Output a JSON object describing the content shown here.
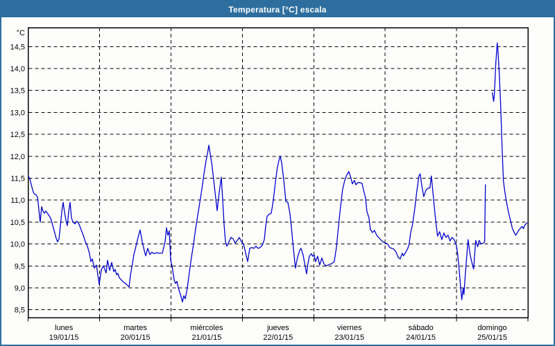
{
  "window": {
    "title": "Temperatura [°C] escala"
  },
  "colors": {
    "frame": "#2d6e9e",
    "titlebar": "#2d6e9e",
    "title_text": "#ffffff",
    "plot_background": "#fdfefc",
    "grid": "#000000",
    "series": "#0000cd"
  },
  "chart_data": {
    "type": "line",
    "title": "Temperatura [°C] escala",
    "unit_label": "°C",
    "legend": "none",
    "grid": "dashed",
    "ylim_display": [
      8.32,
      14.93
    ],
    "yticks": [
      [
        14.5,
        "14,5"
      ],
      [
        14.0,
        "14,0"
      ],
      [
        13.5,
        "13,5"
      ],
      [
        13.0,
        "13,0"
      ],
      [
        12.5,
        "12,5"
      ],
      [
        12.0,
        "12,0"
      ],
      [
        11.5,
        "11,5"
      ],
      [
        11.0,
        "11,0"
      ],
      [
        10.5,
        "10,5"
      ],
      [
        10.0,
        "10,0"
      ],
      [
        9.5,
        "9,5"
      ],
      [
        9.0,
        "9,0"
      ],
      [
        8.5,
        "8,5"
      ]
    ],
    "x_days": [
      {
        "name": "lunes",
        "date": "19/01/15"
      },
      {
        "name": "martes",
        "date": "20/01/15"
      },
      {
        "name": "miércoles",
        "date": "21/01/15"
      },
      {
        "name": "jueves",
        "date": "22/01/15"
      },
      {
        "name": "viernes",
        "date": "23/01/15"
      },
      {
        "name": "sábado",
        "date": "24/01/15"
      },
      {
        "name": "domingo",
        "date": "25/01/15"
      }
    ],
    "x_unit": "days_since_start",
    "points": [
      [
        0.0,
        11.55
      ],
      [
        0.022,
        11.48
      ],
      [
        0.042,
        11.36
      ],
      [
        0.061,
        11.23
      ],
      [
        0.081,
        11.15
      ],
      [
        0.11,
        11.12
      ],
      [
        0.129,
        11.07
      ],
      [
        0.139,
        10.95
      ],
      [
        0.158,
        10.62
      ],
      [
        0.168,
        10.5
      ],
      [
        0.188,
        10.85
      ],
      [
        0.207,
        10.75
      ],
      [
        0.226,
        10.7
      ],
      [
        0.246,
        10.75
      ],
      [
        0.265,
        10.71
      ],
      [
        0.294,
        10.64
      ],
      [
        0.314,
        10.59
      ],
      [
        0.333,
        10.48
      ],
      [
        0.363,
        10.3
      ],
      [
        0.392,
        10.13
      ],
      [
        0.411,
        10.05
      ],
      [
        0.431,
        10.11
      ],
      [
        0.45,
        10.4
      ],
      [
        0.469,
        10.73
      ],
      [
        0.489,
        10.95
      ],
      [
        0.508,
        10.73
      ],
      [
        0.528,
        10.54
      ],
      [
        0.547,
        10.42
      ],
      [
        0.567,
        10.73
      ],
      [
        0.586,
        10.95
      ],
      [
        0.605,
        10.6
      ],
      [
        0.625,
        10.5
      ],
      [
        0.654,
        10.46
      ],
      [
        0.683,
        10.52
      ],
      [
        0.712,
        10.45
      ],
      [
        0.742,
        10.32
      ],
      [
        0.771,
        10.2
      ],
      [
        0.8,
        10.05
      ],
      [
        0.829,
        9.95
      ],
      [
        0.858,
        9.78
      ],
      [
        0.878,
        9.6
      ],
      [
        0.897,
        9.66
      ],
      [
        0.926,
        9.45
      ],
      [
        0.955,
        9.52
      ],
      [
        0.975,
        9.3
      ],
      [
        0.994,
        9.08
      ],
      [
        1.024,
        9.42
      ],
      [
        1.053,
        9.5
      ],
      [
        1.091,
        9.34
      ],
      [
        1.111,
        9.63
      ],
      [
        1.14,
        9.4
      ],
      [
        1.169,
        9.58
      ],
      [
        1.198,
        9.37
      ],
      [
        1.218,
        9.42
      ],
      [
        1.237,
        9.3
      ],
      [
        1.257,
        9.33
      ],
      [
        1.276,
        9.23
      ],
      [
        1.305,
        9.18
      ],
      [
        1.334,
        9.13
      ],
      [
        1.363,
        9.1
      ],
      [
        1.412,
        9.02
      ],
      [
        1.432,
        9.3
      ],
      [
        1.451,
        9.47
      ],
      [
        1.48,
        9.76
      ],
      [
        1.509,
        9.95
      ],
      [
        1.538,
        10.15
      ],
      [
        1.568,
        10.32
      ],
      [
        1.597,
        10.05
      ],
      [
        1.626,
        9.85
      ],
      [
        1.645,
        9.73
      ],
      [
        1.674,
        9.9
      ],
      [
        1.704,
        9.76
      ],
      [
        1.733,
        9.81
      ],
      [
        1.762,
        9.78
      ],
      [
        1.801,
        9.8
      ],
      [
        1.84,
        9.79
      ],
      [
        1.879,
        9.79
      ],
      [
        1.917,
        10.05
      ],
      [
        1.937,
        10.37
      ],
      [
        1.956,
        10.2
      ],
      [
        1.976,
        10.3
      ],
      [
        1.995,
        9.63
      ],
      [
        2.015,
        9.5
      ],
      [
        2.044,
        9.18
      ],
      [
        2.063,
        9.1
      ],
      [
        2.083,
        9.15
      ],
      [
        2.102,
        9.0
      ],
      [
        2.121,
        8.9
      ],
      [
        2.141,
        8.8
      ],
      [
        2.16,
        8.68
      ],
      [
        2.18,
        8.82
      ],
      [
        2.199,
        8.75
      ],
      [
        2.228,
        9.0
      ],
      [
        2.257,
        9.35
      ],
      [
        2.287,
        9.7
      ],
      [
        2.316,
        10.0
      ],
      [
        2.345,
        10.35
      ],
      [
        2.374,
        10.65
      ],
      [
        2.403,
        10.95
      ],
      [
        2.432,
        11.25
      ],
      [
        2.462,
        11.6
      ],
      [
        2.491,
        11.9
      ],
      [
        2.51,
        12.05
      ],
      [
        2.53,
        12.25
      ],
      [
        2.549,
        12.05
      ],
      [
        2.569,
        11.85
      ],
      [
        2.588,
        11.6
      ],
      [
        2.617,
        11.18
      ],
      [
        2.646,
        10.76
      ],
      [
        2.675,
        11.18
      ],
      [
        2.705,
        11.52
      ],
      [
        2.724,
        11.0
      ],
      [
        2.743,
        10.45
      ],
      [
        2.763,
        10.05
      ],
      [
        2.782,
        9.95
      ],
      [
        2.811,
        10.05
      ],
      [
        2.84,
        10.15
      ],
      [
        2.87,
        10.12
      ],
      [
        2.899,
        10.02
      ],
      [
        2.928,
        10.08
      ],
      [
        2.957,
        10.15
      ],
      [
        2.986,
        10.05
      ],
      [
        3.016,
        10.0
      ],
      [
        3.045,
        9.8
      ],
      [
        3.074,
        9.6
      ],
      [
        3.103,
        9.9
      ],
      [
        3.132,
        9.92
      ],
      [
        3.161,
        9.9
      ],
      [
        3.19,
        9.95
      ],
      [
        3.22,
        9.9
      ],
      [
        3.249,
        9.92
      ],
      [
        3.278,
        9.97
      ],
      [
        3.307,
        10.1
      ],
      [
        3.326,
        10.4
      ],
      [
        3.346,
        10.63
      ],
      [
        3.375,
        10.68
      ],
      [
        3.404,
        10.7
      ],
      [
        3.433,
        11.0
      ],
      [
        3.462,
        11.4
      ],
      [
        3.491,
        11.75
      ],
      [
        3.511,
        11.9
      ],
      [
        3.53,
        12.0
      ],
      [
        3.55,
        11.85
      ],
      [
        3.569,
        11.6
      ],
      [
        3.588,
        11.32
      ],
      [
        3.608,
        10.97
      ],
      [
        3.637,
        10.95
      ],
      [
        3.666,
        10.7
      ],
      [
        3.685,
        10.4
      ],
      [
        3.714,
        9.9
      ],
      [
        3.743,
        9.45
      ],
      [
        3.773,
        9.7
      ],
      [
        3.802,
        9.85
      ],
      [
        3.821,
        9.9
      ],
      [
        3.85,
        9.75
      ],
      [
        3.879,
        9.5
      ],
      [
        3.899,
        9.32
      ],
      [
        3.918,
        9.55
      ],
      [
        3.938,
        9.72
      ],
      [
        3.967,
        9.78
      ],
      [
        3.986,
        9.72
      ],
      [
        4.006,
        9.75
      ],
      [
        4.025,
        9.6
      ],
      [
        4.054,
        9.72
      ],
      [
        4.083,
        9.52
      ],
      [
        4.113,
        9.68
      ],
      [
        4.142,
        9.55
      ],
      [
        4.171,
        9.5
      ],
      [
        4.21,
        9.53
      ],
      [
        4.249,
        9.55
      ],
      [
        4.287,
        9.6
      ],
      [
        4.317,
        9.92
      ],
      [
        4.346,
        10.4
      ],
      [
        4.375,
        10.85
      ],
      [
        4.404,
        11.25
      ],
      [
        4.433,
        11.45
      ],
      [
        4.462,
        11.57
      ],
      [
        4.491,
        11.65
      ],
      [
        4.521,
        11.5
      ],
      [
        4.54,
        11.37
      ],
      [
        4.569,
        11.45
      ],
      [
        4.589,
        11.35
      ],
      [
        4.618,
        11.4
      ],
      [
        4.647,
        11.4
      ],
      [
        4.676,
        11.38
      ],
      [
        4.695,
        11.24
      ],
      [
        4.725,
        11.05
      ],
      [
        4.744,
        10.74
      ],
      [
        4.773,
        10.6
      ],
      [
        4.792,
        10.34
      ],
      [
        4.821,
        10.26
      ],
      [
        4.85,
        10.31
      ],
      [
        4.88,
        10.2
      ],
      [
        4.909,
        10.15
      ],
      [
        4.947,
        10.08
      ],
      [
        4.977,
        10.04
      ],
      [
        5.006,
        10.02
      ],
      [
        5.035,
        10.0
      ],
      [
        5.064,
        9.92
      ],
      [
        5.093,
        9.9
      ],
      [
        5.122,
        9.88
      ],
      [
        5.152,
        9.82
      ],
      [
        5.181,
        9.7
      ],
      [
        5.21,
        9.66
      ],
      [
        5.239,
        9.79
      ],
      [
        5.258,
        9.73
      ],
      [
        5.288,
        9.81
      ],
      [
        5.317,
        9.9
      ],
      [
        5.336,
        10.0
      ],
      [
        5.355,
        10.24
      ],
      [
        5.385,
        10.46
      ],
      [
        5.414,
        10.8
      ],
      [
        5.443,
        11.2
      ],
      [
        5.472,
        11.55
      ],
      [
        5.491,
        11.6
      ],
      [
        5.511,
        11.35
      ],
      [
        5.54,
        11.08
      ],
      [
        5.569,
        11.22
      ],
      [
        5.598,
        11.27
      ],
      [
        5.627,
        11.28
      ],
      [
        5.647,
        11.55
      ],
      [
        5.676,
        11.05
      ],
      [
        5.705,
        10.58
      ],
      [
        5.734,
        10.18
      ],
      [
        5.763,
        10.28
      ],
      [
        5.793,
        10.1
      ],
      [
        5.822,
        10.25
      ],
      [
        5.851,
        10.15
      ],
      [
        5.88,
        10.2
      ],
      [
        5.909,
        10.07
      ],
      [
        5.938,
        10.15
      ],
      [
        5.967,
        10.1
      ],
      [
        5.997,
        9.97
      ],
      [
        6.016,
        9.77
      ],
      [
        6.035,
        9.45
      ],
      [
        6.055,
        9.05
      ],
      [
        6.074,
        8.73
      ],
      [
        6.093,
        9.0
      ],
      [
        6.103,
        8.85
      ],
      [
        6.122,
        9.3
      ],
      [
        6.142,
        9.7
      ],
      [
        6.161,
        10.1
      ],
      [
        6.19,
        9.75
      ],
      [
        6.219,
        9.55
      ],
      [
        6.239,
        9.43
      ],
      [
        6.268,
        10.08
      ],
      [
        6.297,
        9.94
      ],
      [
        6.316,
        10.08
      ],
      [
        6.345,
        10.0
      ],
      [
        6.374,
        10.02
      ],
      [
        6.394,
        10.05
      ],
      [
        6.404,
        11.35
      ],
      null,
      [
        6.501,
        13.45
      ],
      [
        6.52,
        13.25
      ],
      [
        6.53,
        13.4
      ],
      [
        6.549,
        14.1
      ],
      [
        6.569,
        14.58
      ],
      [
        6.578,
        14.45
      ],
      [
        6.598,
        13.9
      ],
      [
        6.617,
        13.2
      ],
      [
        6.636,
        12.3
      ],
      [
        6.656,
        11.45
      ],
      [
        6.675,
        11.2
      ],
      [
        6.695,
        11.0
      ],
      [
        6.724,
        10.75
      ],
      [
        6.753,
        10.55
      ],
      [
        6.782,
        10.35
      ],
      [
        6.811,
        10.25
      ],
      [
        6.83,
        10.2
      ],
      [
        6.859,
        10.28
      ],
      [
        6.888,
        10.35
      ],
      [
        6.918,
        10.4
      ],
      [
        6.937,
        10.35
      ],
      [
        6.956,
        10.43
      ],
      [
        6.986,
        10.48
      ]
    ]
  }
}
